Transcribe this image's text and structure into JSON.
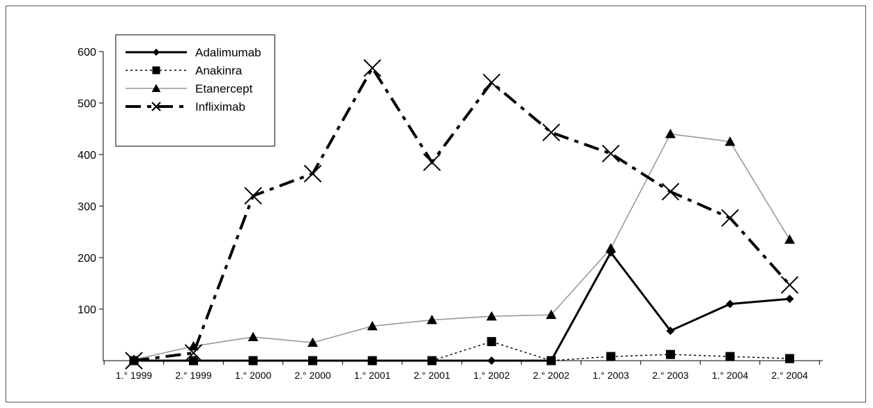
{
  "chart_data": {
    "type": "line",
    "categories": [
      "1.° 1999",
      "2.° 1999",
      "1.° 2000",
      "2.° 2000",
      "1.° 2001",
      "2.° 2001",
      "1.° 2002",
      "2.° 2002",
      "1.° 2003",
      "2.° 2003",
      "1.° 2004",
      "2.° 2004"
    ],
    "ylim": [
      0,
      600
    ],
    "yticks": [
      100,
      200,
      300,
      400,
      500,
      600
    ],
    "legend_position": "top-left",
    "grid": false,
    "series": [
      {
        "name": "Adalimumab",
        "values": [
          0,
          0,
          0,
          0,
          0,
          0,
          0,
          0,
          210,
          58,
          110,
          120
        ],
        "color": "#000000",
        "marker": "diamond",
        "dash": "solid"
      },
      {
        "name": "Anakinra",
        "values": [
          0,
          0,
          0,
          0,
          0,
          0,
          37,
          0,
          8,
          12,
          8,
          4
        ],
        "color": "#000000",
        "marker": "square",
        "dash": "dotted"
      },
      {
        "name": "Etanercept",
        "values": [
          2,
          28,
          46,
          35,
          67,
          79,
          86,
          89,
          218,
          440,
          425,
          235
        ],
        "color": "#999999",
        "marker": "triangle",
        "dash": "solid"
      },
      {
        "name": "Infliximab",
        "values": [
          0,
          15,
          320,
          363,
          568,
          385,
          540,
          443,
          402,
          328,
          277,
          147
        ],
        "color": "#000000",
        "marker": "x",
        "dash": "dashdot"
      }
    ]
  }
}
